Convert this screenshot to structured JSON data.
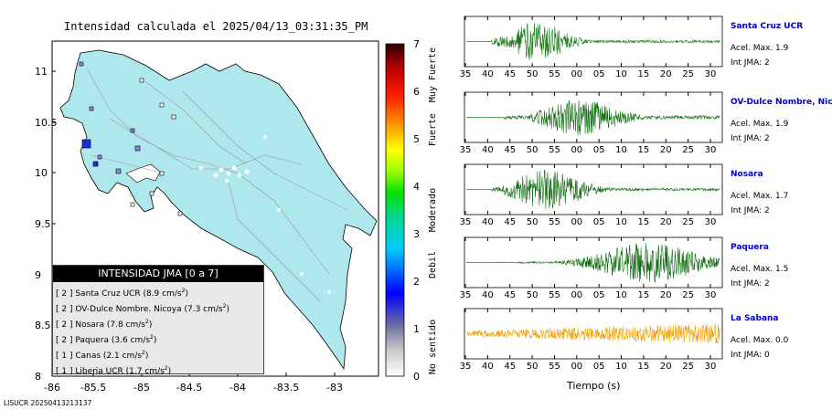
{
  "map": {
    "title": "Intensidad calculada el 2025/04/13_03:31:35_PM",
    "x_ticks": [
      "-86",
      "-85.5",
      "-85",
      "-84.5",
      "-84",
      "-83.5",
      "-83"
    ],
    "y_ticks": [
      "11",
      "10.5",
      "10",
      "9.5",
      "9",
      "8.5",
      "8"
    ],
    "colorbar_ticks": [
      "7",
      "6",
      "5",
      "4",
      "3",
      "2",
      "1",
      "0"
    ],
    "colorbar_categories": [
      "Muy Fuerte",
      "Fuerte",
      "Moderado",
      "Debil",
      "No sentido"
    ],
    "legend_title": "INTENSIDAD JMA [0 a 7]",
    "legend_items": [
      {
        "jma": "[ 2 ]",
        "station": "Santa Cruz UCR",
        "pga": "(8.9 cm/s",
        "sup": "2",
        ")": ")"
      },
      {
        "jma": "[ 2 ]",
        "station": "OV-Dulce Nombre. Nicoya",
        "pga": "(7.3 cm/s",
        "sup": "2"
      },
      {
        "jma": "[ 2 ]",
        "station": "Nosara",
        "pga": "(7.8 cm/s",
        "sup": "2"
      },
      {
        "jma": "[ 2 ]",
        "station": "Paquera",
        "pga": "(3.6 cm/s",
        "sup": "2"
      },
      {
        "jma": "[ 1 ]",
        "station": "Canas",
        "pga": "(2.1 cm/s",
        "sup": "2"
      },
      {
        "jma": "[ 1 ]",
        "station": "Liberia UCR",
        "pga": "(1.7 cm/s",
        "sup": "2"
      }
    ],
    "footer_id": "LISUCR 20250413213137"
  },
  "waveforms": {
    "x_ticks": [
      "35",
      "40",
      "45",
      "50",
      "55",
      "00",
      "05",
      "10",
      "15",
      "20",
      "25",
      "30"
    ],
    "xlabel": "Tiempo (s)",
    "panels": [
      {
        "name": "Santa Cruz UCR",
        "accel": "Acel. Max. 1.9",
        "int": "Int JMA: 2",
        "color": "#1a7a1a",
        "profile": "early"
      },
      {
        "name": "OV-Dulce Nombre, Nico",
        "accel": "Acel. Max. 1.9",
        "int": "Int JMA: 2",
        "color": "#0d6b0d",
        "profile": "mid"
      },
      {
        "name": "Nosara",
        "accel": "Acel. Max. 1.7",
        "int": "Int JMA: 2",
        "color": "#0d6b0d",
        "profile": "early2"
      },
      {
        "name": "Paquera",
        "accel": "Acel. Max. 1.5",
        "int": "Int JMA: 2",
        "color": "#0d6b0d",
        "profile": "late"
      },
      {
        "name": "La Sabana",
        "accel": "Acel. Max. 0.0",
        "int": "Int JMA: 0",
        "color": "#f0a000",
        "profile": "noise"
      }
    ]
  },
  "chart_data": [
    {
      "type": "scatter",
      "title": "Intensidad calculada el 2025/04/13_03:31:35_PM",
      "xlabel": "",
      "ylabel": "",
      "xlim": [
        -86,
        -82.5
      ],
      "ylim": [
        8,
        11.3
      ],
      "series": [
        {
          "name": "INTENSIDAD JMA [0 a 7]",
          "points": [
            {
              "x": -85.6,
              "y": 10.28,
              "v": 2
            },
            {
              "x": -85.5,
              "y": 10.09,
              "v": 2
            },
            {
              "x": -85.55,
              "y": 10.45,
              "v": 2
            },
            {
              "x": -85.1,
              "y": 9.97,
              "v": 2
            },
            {
              "x": -85.23,
              "y": 10.44,
              "v": 1
            },
            {
              "x": -85.43,
              "y": 10.62,
              "v": 1
            }
          ]
        }
      ]
    },
    {
      "type": "line",
      "title": "",
      "xlabel": "Tiempo (s)",
      "ylabel": "",
      "series_names": [
        "Santa Cruz UCR",
        "OV-Dulce Nombre, Nico",
        "Nosara",
        "Paquera",
        "La Sabana"
      ]
    }
  ],
  "colors": {
    "land": "#aee8ec",
    "stations": "#7a7aee",
    "wave_green": "#0d6b0d",
    "wave_noise": "#f0a000"
  }
}
